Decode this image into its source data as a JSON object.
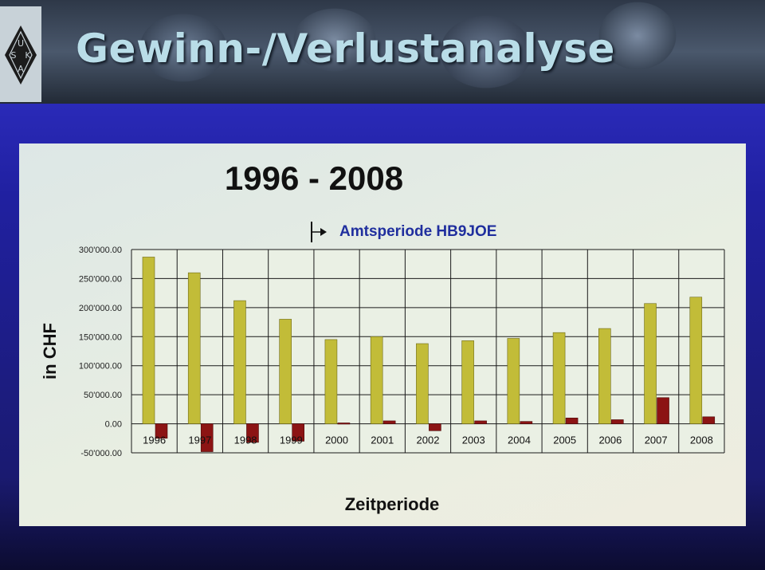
{
  "slide": {
    "title": "Gewinn-/Verlustanalyse",
    "logo_letters": [
      "U",
      "S",
      "K",
      "A"
    ],
    "logo_icon": "uska-diamond-logo"
  },
  "colors": {
    "income_bar": "#c2bc38",
    "result_bar": "#8c1414",
    "grid": "#1a1a1a",
    "panel": "#e6ece4",
    "title_text": "#b9dde8",
    "annotation_text": "#1f2e9e"
  },
  "chart_data": {
    "type": "bar",
    "title": "1996 - 2008",
    "annotation": "Amtsperiode HB9JOE",
    "annotation_icon": "bracket-arrow-right-icon",
    "xlabel": "Zeitperiode",
    "ylabel": "in CHF",
    "categories": [
      "1996",
      "1997",
      "1998",
      "1999",
      "2000",
      "2001",
      "2002",
      "2003",
      "2004",
      "2005",
      "2006",
      "2007",
      "2008"
    ],
    "series": [
      {
        "color": "#c2bc38",
        "values": [
          287000,
          260000,
          212000,
          180000,
          145000,
          150000,
          138000,
          143000,
          147000,
          157000,
          164000,
          207000,
          218000
        ]
      },
      {
        "color": "#8c1414",
        "values": [
          -25000,
          -48000,
          -32000,
          -30000,
          1500,
          5000,
          -12000,
          5000,
          4000,
          10000,
          7000,
          45000,
          12000
        ]
      }
    ],
    "ylim": [
      -50000,
      300000
    ],
    "yticks": [
      -50000,
      0,
      50000,
      100000,
      150000,
      200000,
      250000,
      300000
    ],
    "ytick_labels": [
      "-50'000.00",
      "0.00",
      "50'000.00",
      "100'000.00",
      "150'000.00",
      "200'000.00",
      "250'000.00",
      "300'000.00"
    ],
    "grid": true,
    "legend": "none"
  }
}
